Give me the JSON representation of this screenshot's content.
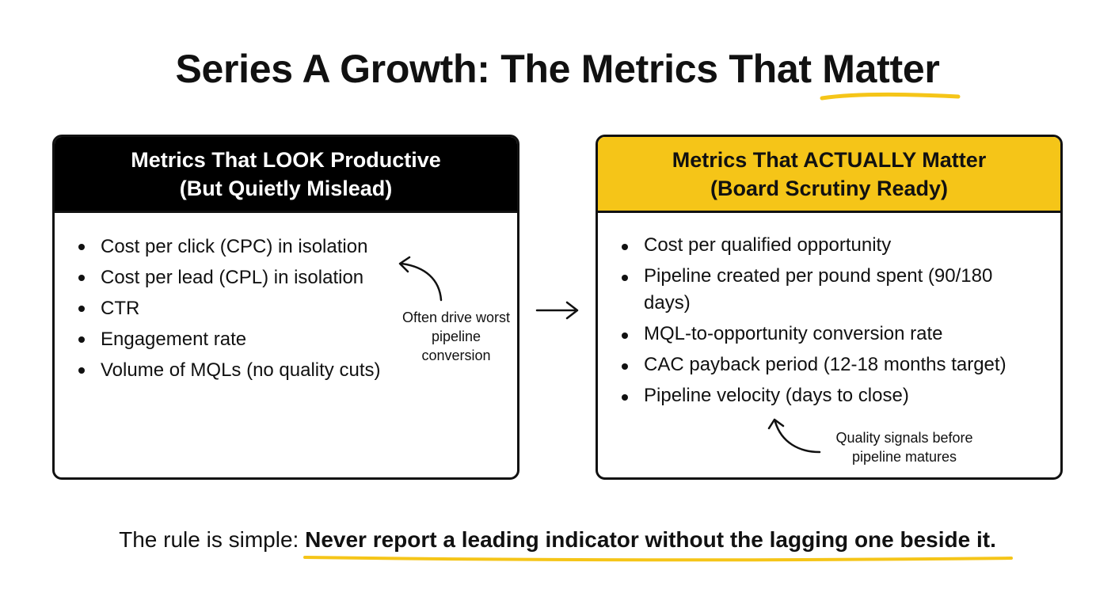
{
  "title": {
    "prefix": "Series A Growth: The Metrics That ",
    "highlight": "Matter"
  },
  "left_card": {
    "heading_line1": "Metrics That LOOK Productive",
    "heading_line2": "(But Quietly Mislead)",
    "items": [
      "Cost per click (CPC) in isolation",
      "Cost per lead (CPL) in isolation",
      "CTR",
      "Engagement rate",
      "Volume of MQLs (no quality cuts)"
    ],
    "note": "Often drive worst pipeline conversion"
  },
  "right_card": {
    "heading_line1": "Metrics That ACTUALLY Matter",
    "heading_line2": "(Board Scrutiny Ready)",
    "items": [
      "Cost per qualified opportunity",
      "Pipeline created per pound spent (90/180 days)",
      "MQL-to-opportunity conversion rate",
      "CAC payback period (12-18 months target)",
      "Pipeline velocity (days to close)"
    ],
    "note": "Quality signals before pipeline matures"
  },
  "footer": {
    "prefix": "The rule is simple: ",
    "emphasis": "Never report a leading indicator without the lagging one beside it."
  },
  "colors": {
    "accent": "#f5c518",
    "dark": "#000000",
    "text": "#111111"
  }
}
